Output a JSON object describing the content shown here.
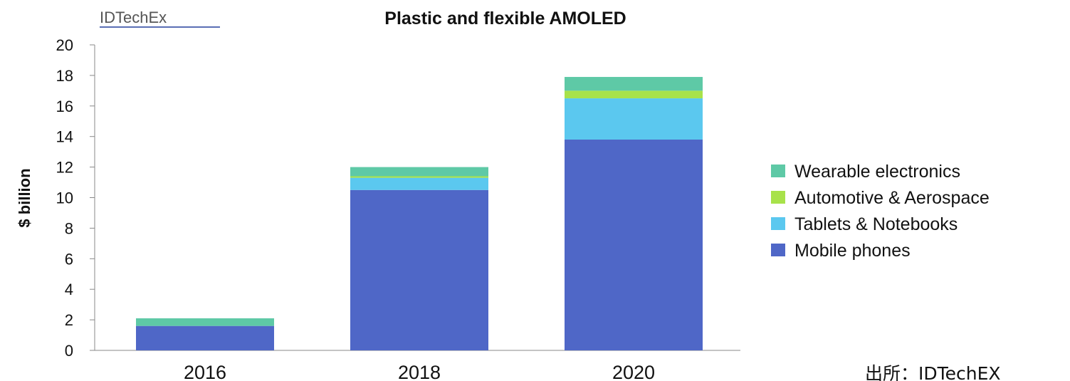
{
  "header": {
    "logo_text": "IDTechEx",
    "source_note": "出所：IDTechEX"
  },
  "chart_data": {
    "type": "bar",
    "stacked": true,
    "title": "Plastic and flexible AMOLED",
    "xlabel": "",
    "ylabel": "$ billion",
    "ylim": [
      0,
      20
    ],
    "yticks": [
      0,
      2,
      4,
      6,
      8,
      10,
      12,
      14,
      16,
      18,
      20
    ],
    "categories": [
      "2016",
      "2018",
      "2020"
    ],
    "series": [
      {
        "name": "Mobile phones",
        "color": "#4f67c7",
        "values": [
          1.6,
          10.5,
          13.8
        ]
      },
      {
        "name": "Tablets & Notebooks",
        "color": "#5bc8ef",
        "values": [
          0.0,
          0.8,
          2.7
        ]
      },
      {
        "name": "Automotive & Aerospace",
        "color": "#a8e24a",
        "values": [
          0.0,
          0.1,
          0.5
        ]
      },
      {
        "name": "Wearable electronics",
        "color": "#5ec9a6",
        "values": [
          0.5,
          0.6,
          0.9
        ]
      }
    ],
    "legend_position": "right",
    "grid": false
  }
}
